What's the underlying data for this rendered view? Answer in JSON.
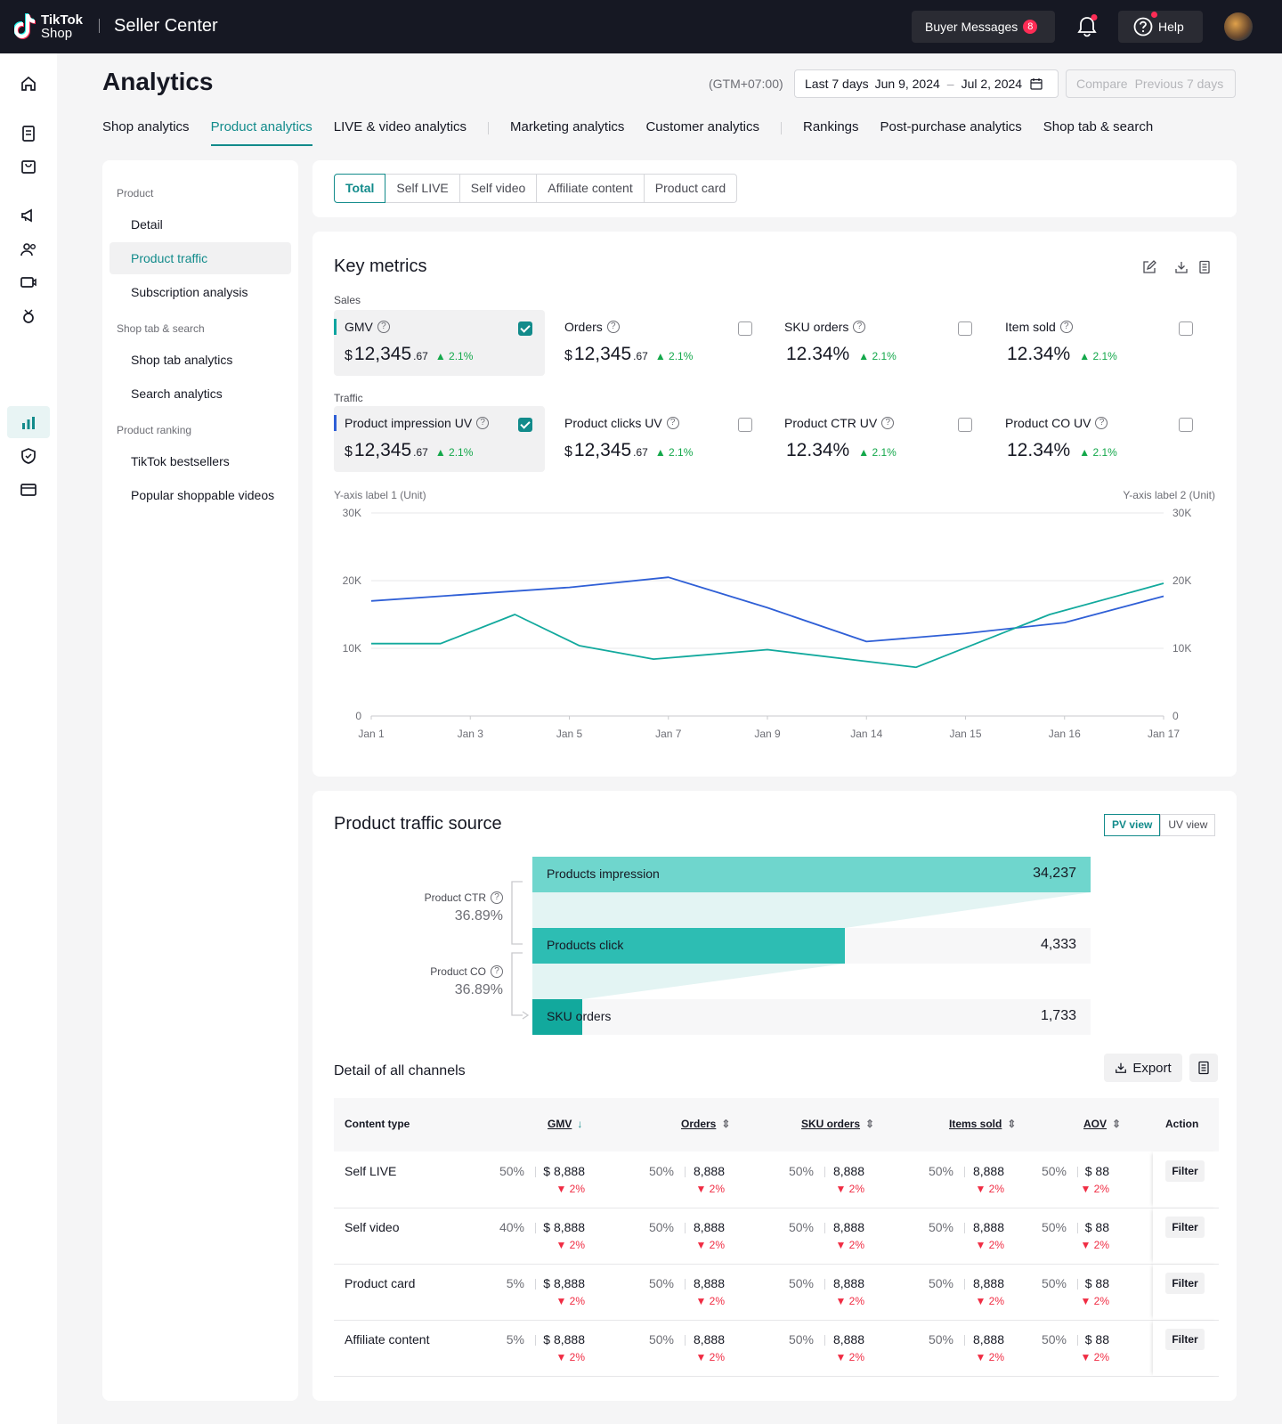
{
  "topbar": {
    "logo_line1": "TikTok",
    "logo_line2": "Shop",
    "title": "Seller Center",
    "buyer_messages": "Buyer Messages",
    "buyer_messages_count": "8",
    "help": "Help"
  },
  "page": {
    "title": "Analytics",
    "timezone": "(GTM+07:00)",
    "date_range_label": "Last 7 days",
    "date_start": "Jun 9, 2024",
    "date_end": "Jul 2, 2024",
    "compare_label": "Compare",
    "compare_value": "Previous 7 days"
  },
  "tabs": [
    "Shop analytics",
    "Product analytics",
    "LIVE & video analytics",
    "Marketing analytics",
    "Customer analytics",
    "Rankings",
    "Post-purchase analytics",
    "Shop tab &  search"
  ],
  "sidebar": {
    "sections": [
      {
        "header": "Product",
        "items": [
          "Detail",
          "Product traffic",
          "Subscription analysis"
        ]
      },
      {
        "header": "Shop tab & search",
        "items": [
          "Shop tab analytics",
          "Search analytics"
        ]
      },
      {
        "header": "Product ranking",
        "items": [
          "TikTok bestsellers",
          "Popular shoppable videos"
        ]
      }
    ]
  },
  "content_types": [
    "Total",
    "Self LIVE",
    "Self video",
    "Affiliate content",
    "Product card"
  ],
  "key_metrics": {
    "title": "Key metrics",
    "sales_label": "Sales",
    "traffic_label": "Traffic",
    "sales": [
      {
        "label": "GMV",
        "currency": "$",
        "value": "12,345",
        "decimal": ".67",
        "change": "2.1%",
        "selected": true,
        "color": "#0fa5a0"
      },
      {
        "label": "Orders",
        "currency": "$",
        "value": "12,345",
        "decimal": ".67",
        "change": "2.1%",
        "selected": false
      },
      {
        "label": "SKU orders",
        "currency": "",
        "value": "12.34%",
        "decimal": "",
        "change": "2.1%",
        "selected": false
      },
      {
        "label": "Item sold",
        "currency": "",
        "value": "12.34%",
        "decimal": "",
        "change": "2.1%",
        "selected": false
      }
    ],
    "traffic": [
      {
        "label": "Product impression UV",
        "currency": "$",
        "value": "12,345",
        "decimal": ".67",
        "change": "2.1%",
        "selected": true,
        "color": "#2f5fd6"
      },
      {
        "label": "Product clicks UV",
        "currency": "$",
        "value": "12,345",
        "decimal": ".67",
        "change": "2.1%",
        "selected": false
      },
      {
        "label": "Product CTR UV",
        "currency": "",
        "value": "12.34%",
        "decimal": "",
        "change": "2.1%",
        "selected": false
      },
      {
        "label": "Product CO UV",
        "currency": "",
        "value": "12.34%",
        "decimal": "",
        "change": "2.1%",
        "selected": false
      }
    ]
  },
  "chart_data": {
    "type": "line",
    "ylabel": "Y-axis label 1 (Unit)",
    "ylabel2": "Y-axis label 2 (Unit)",
    "categories": [
      "Jan 1",
      "Jan 3",
      "Jan 5",
      "Jan 7",
      "Jan 9",
      "Jan 14",
      "Jan 15",
      "Jan 16",
      "Jan 17"
    ],
    "yticks": [
      "0",
      "10K",
      "20K",
      "30K"
    ],
    "ylim": [
      0,
      30000
    ],
    "series": [
      {
        "color": "#2f5fd6",
        "x": [
          0,
          1,
          2,
          3,
          4,
          5,
          6,
          7,
          8
        ],
        "values": [
          17000,
          18000,
          19000,
          20500,
          16000,
          11000,
          12200,
          13800,
          17700
        ]
      },
      {
        "color": "#12a99d",
        "x": [
          0,
          0.7,
          1.45,
          2.1,
          2.85,
          4.0,
          5.5,
          6.85,
          8
        ],
        "values": [
          10700,
          10700,
          15000,
          10400,
          8400,
          9800,
          7200,
          15000,
          19600
        ]
      }
    ],
    "grid": true
  },
  "traffic_source": {
    "title": "Product traffic source",
    "pv_view": "PV view",
    "uv_view": "UV view",
    "funnel": [
      {
        "label": "Products impression",
        "value": "34,237",
        "ratio": 1.0
      },
      {
        "label": "Products click",
        "value": "4,333",
        "ratio": 0.56
      },
      {
        "label": "SKU orders",
        "value": "1,733",
        "ratio": 0.09
      }
    ],
    "ctr_label": "Product CTR",
    "ctr_value": "36.89%",
    "co_label": "Product CO",
    "co_value": "36.89%"
  },
  "channels": {
    "title": "Detail of all channels",
    "export": "Export",
    "headers": [
      "Content type",
      "GMV",
      "Orders",
      "SKU orders",
      "Items sold",
      "AOV",
      "Action"
    ],
    "rows": [
      {
        "name": "Self LIVE",
        "cells": [
          [
            "50%",
            "$ 8,888",
            "2%"
          ],
          [
            "50%",
            "8,888",
            "2%"
          ],
          [
            "50%",
            "8,888",
            "2%"
          ],
          [
            "50%",
            "8,888",
            "2%"
          ],
          [
            "50%",
            "$ 88",
            "2%"
          ]
        ],
        "action": "Filter"
      },
      {
        "name": "Self video",
        "cells": [
          [
            "40%",
            "$ 8,888",
            "2%"
          ],
          [
            "50%",
            "8,888",
            "2%"
          ],
          [
            "50%",
            "8,888",
            "2%"
          ],
          [
            "50%",
            "8,888",
            "2%"
          ],
          [
            "50%",
            "$ 88",
            "2%"
          ]
        ],
        "action": "Filter"
      },
      {
        "name": "Product card",
        "cells": [
          [
            "5%",
            "$ 8,888",
            "2%"
          ],
          [
            "50%",
            "8,888",
            "2%"
          ],
          [
            "50%",
            "8,888",
            "2%"
          ],
          [
            "50%",
            "8,888",
            "2%"
          ],
          [
            "50%",
            "$ 88",
            "2%"
          ]
        ],
        "action": "Filter"
      },
      {
        "name": "Affiliate content",
        "cells": [
          [
            "5%",
            "$ 8,888",
            "2%"
          ],
          [
            "50%",
            "8,888",
            "2%"
          ],
          [
            "50%",
            "8,888",
            "2%"
          ],
          [
            "50%",
            "8,888",
            "2%"
          ],
          [
            "50%",
            "$ 88",
            "2%"
          ]
        ],
        "action": "Filter"
      }
    ]
  },
  "colors": {
    "accent": "#128b8b",
    "up": "#14a84b",
    "down": "#f02c43",
    "funnel1": "#6fd6cd",
    "funnel2": "#2dbdb3",
    "funnel3": "#12a99d"
  }
}
